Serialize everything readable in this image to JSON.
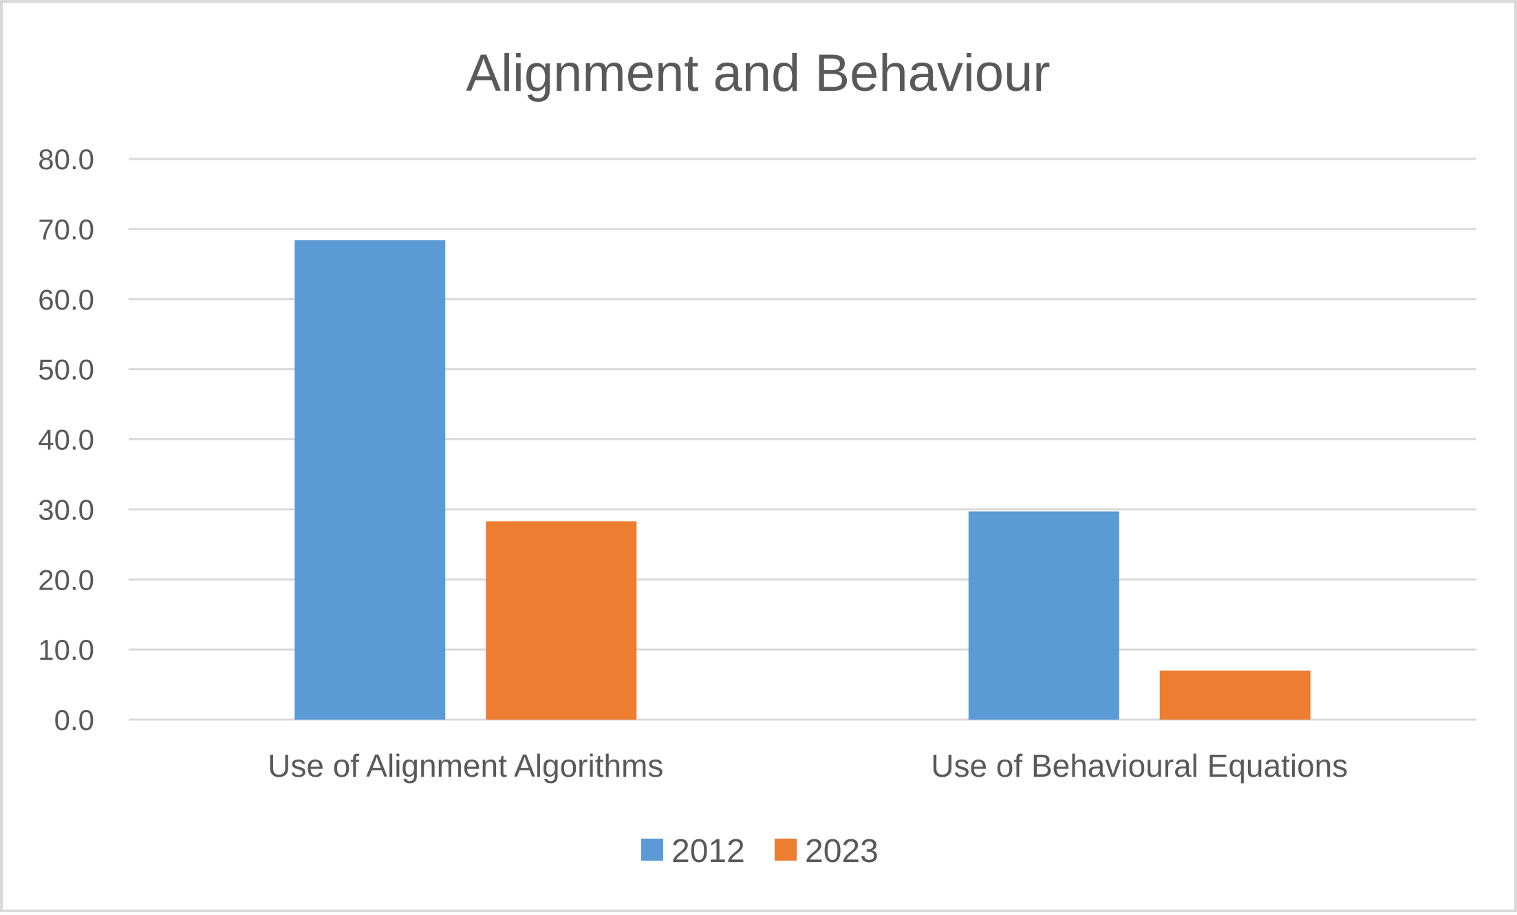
{
  "chart_data": {
    "type": "bar",
    "title": "Alignment and Behaviour",
    "xlabel": "",
    "ylabel": "",
    "categories": [
      "Use of Alignment Algorithms",
      "Use of Behavioural Equations"
    ],
    "series": [
      {
        "name": "2012",
        "values": [
          68.4,
          29.7
        ],
        "color": "#5b9bd5"
      },
      {
        "name": "2023",
        "values": [
          28.3,
          7.0
        ],
        "color": "#ed7d31"
      }
    ],
    "ylim": [
      0,
      80
    ],
    "yticks": [
      0,
      10,
      20,
      30,
      40,
      50,
      60,
      70,
      80
    ],
    "ytick_labels": [
      "0.0",
      "10.0",
      "20.0",
      "30.0",
      "40.0",
      "50.0",
      "60.0",
      "70.0",
      "80.0"
    ],
    "grid": true,
    "legend_position": "bottom"
  }
}
